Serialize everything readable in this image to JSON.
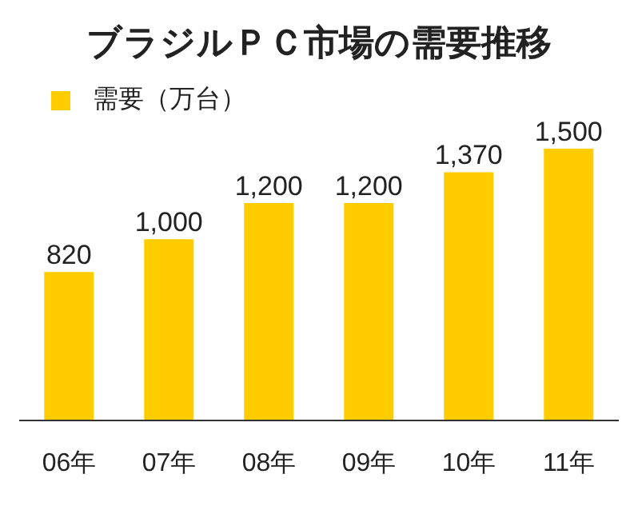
{
  "chart_data": {
    "type": "bar",
    "title": "ブラジルＰＣ市場の需要推移",
    "categories": [
      "06年",
      "07年",
      "08年",
      "09年",
      "10年",
      "11年"
    ],
    "series": [
      {
        "name": "需要（万台）",
        "color": "#ffcc00",
        "values": [
          820,
          1000,
          1200,
          1200,
          1370,
          1500
        ],
        "value_labels": [
          "820",
          "1,000",
          "1,200",
          "1,200",
          "1,370",
          "1,500"
        ]
      }
    ],
    "legend": "top left",
    "tick_labels": "x"
  }
}
